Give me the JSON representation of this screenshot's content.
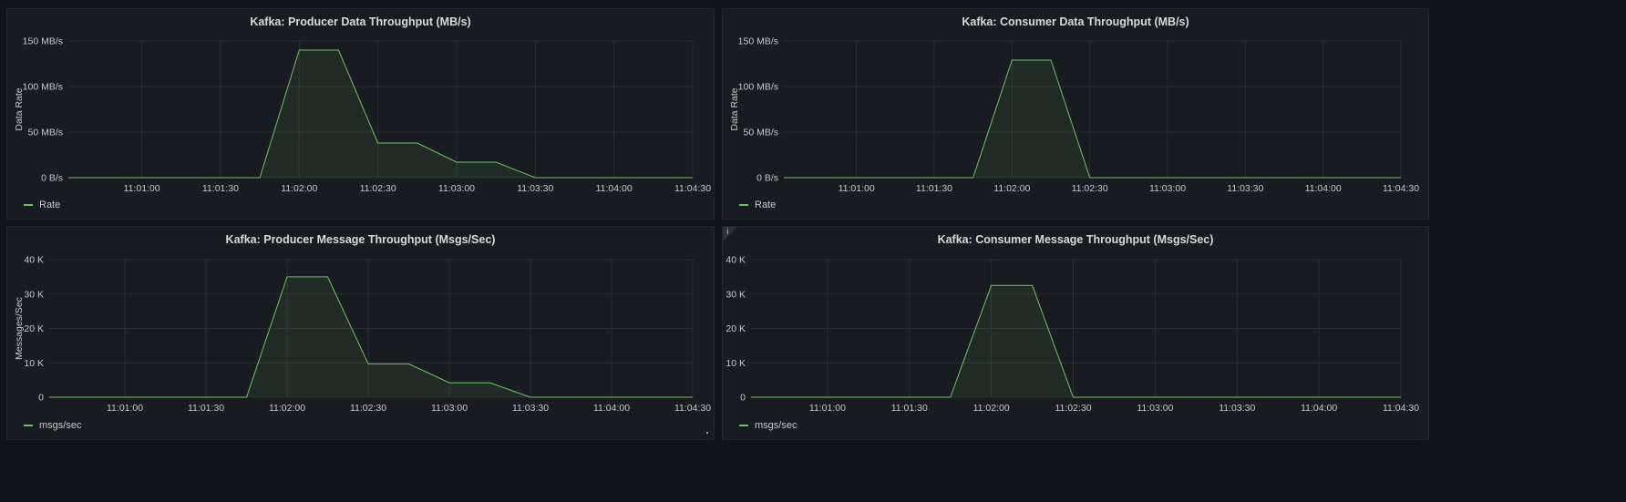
{
  "colors": {
    "series": "#73bf69",
    "grid": "#2b2e33",
    "background": "#181b1f",
    "page": "#111217"
  },
  "icons": {
    "panel_info": "info-icon"
  },
  "chart_data": [
    {
      "type": "area",
      "title": "Kafka: Producer Data Throughput (MB/s)",
      "ylabel": "Data Rate",
      "xlabel": "",
      "ylim": [
        0,
        150
      ],
      "yticks": [
        0,
        50,
        100,
        150
      ],
      "ytick_labels": [
        "0 B/s",
        "50 MB/s",
        "100 MB/s",
        "150 MB/s"
      ],
      "xtick_labels": [
        "11:01:00",
        "11:01:30",
        "11:02:00",
        "11:02:30",
        "11:03:00",
        "11:03:30",
        "11:04:00",
        "11:04:30"
      ],
      "legend": "bottom-left",
      "grid": true,
      "series": [
        {
          "name": "Rate",
          "x": [
            "11:00:32",
            "11:01:45",
            "11:02:00",
            "11:02:15",
            "11:02:30",
            "11:02:45",
            "11:03:00",
            "11:03:15",
            "11:03:30",
            "11:04:30"
          ],
          "values": [
            0,
            0,
            140,
            140,
            38,
            38,
            17,
            17,
            0,
            0
          ]
        }
      ]
    },
    {
      "type": "area",
      "title": "Kafka: Consumer Data Throughput (MB/s)",
      "ylabel": "Data Rate",
      "xlabel": "",
      "ylim": [
        0,
        150
      ],
      "yticks": [
        0,
        50,
        100,
        150
      ],
      "ytick_labels": [
        "0 B/s",
        "50 MB/s",
        "100 MB/s",
        "150 MB/s"
      ],
      "xtick_labels": [
        "11:01:00",
        "11:01:30",
        "11:02:00",
        "11:02:30",
        "11:03:00",
        "11:03:30",
        "11:04:00",
        "11:04:30"
      ],
      "legend": "bottom-left",
      "grid": true,
      "series": [
        {
          "name": "Rate",
          "x": [
            "11:00:32",
            "11:01:45",
            "11:02:00",
            "11:02:15",
            "11:02:30",
            "11:04:30"
          ],
          "values": [
            0,
            0,
            129,
            129,
            0,
            0
          ]
        }
      ]
    },
    {
      "type": "area",
      "title": "Kafka: Producer Message Throughput (Msgs/Sec)",
      "ylabel": "Messages/Sec",
      "xlabel": "",
      "ylim": [
        0,
        40000
      ],
      "yticks": [
        0,
        10000,
        20000,
        30000,
        40000
      ],
      "ytick_labels": [
        "0",
        "10 K",
        "20 K",
        "30 K",
        "40 K"
      ],
      "xtick_labels": [
        "11:01:00",
        "11:01:30",
        "11:02:00",
        "11:02:30",
        "11:03:00",
        "11:03:30",
        "11:04:00",
        "11:04:30"
      ],
      "legend": "bottom-left",
      "grid": true,
      "series": [
        {
          "name": "msgs/sec",
          "x": [
            "11:00:32",
            "11:01:45",
            "11:02:00",
            "11:02:15",
            "11:02:30",
            "11:02:45",
            "11:03:00",
            "11:03:15",
            "11:03:30",
            "11:04:30"
          ],
          "values": [
            0,
            0,
            35000,
            35000,
            9700,
            9700,
            4200,
            4200,
            0,
            0
          ]
        }
      ]
    },
    {
      "type": "area",
      "title": "Kafka: Consumer Message Throughput (Msgs/Sec)",
      "ylabel": "",
      "xlabel": "",
      "ylim": [
        0,
        40000
      ],
      "yticks": [
        0,
        10000,
        20000,
        30000,
        40000
      ],
      "ytick_labels": [
        "0",
        "10 K",
        "20 K",
        "30 K",
        "40 K"
      ],
      "xtick_labels": [
        "11:01:00",
        "11:01:30",
        "11:02:00",
        "11:02:30",
        "11:03:00",
        "11:03:30",
        "11:04:00",
        "11:04:30"
      ],
      "legend": "bottom-left",
      "grid": true,
      "series": [
        {
          "name": "msgs/sec",
          "x": [
            "11:00:32",
            "11:01:45",
            "11:02:00",
            "11:02:15",
            "11:02:30",
            "11:04:30"
          ],
          "values": [
            0,
            0,
            32500,
            32500,
            0,
            0
          ]
        }
      ]
    }
  ]
}
